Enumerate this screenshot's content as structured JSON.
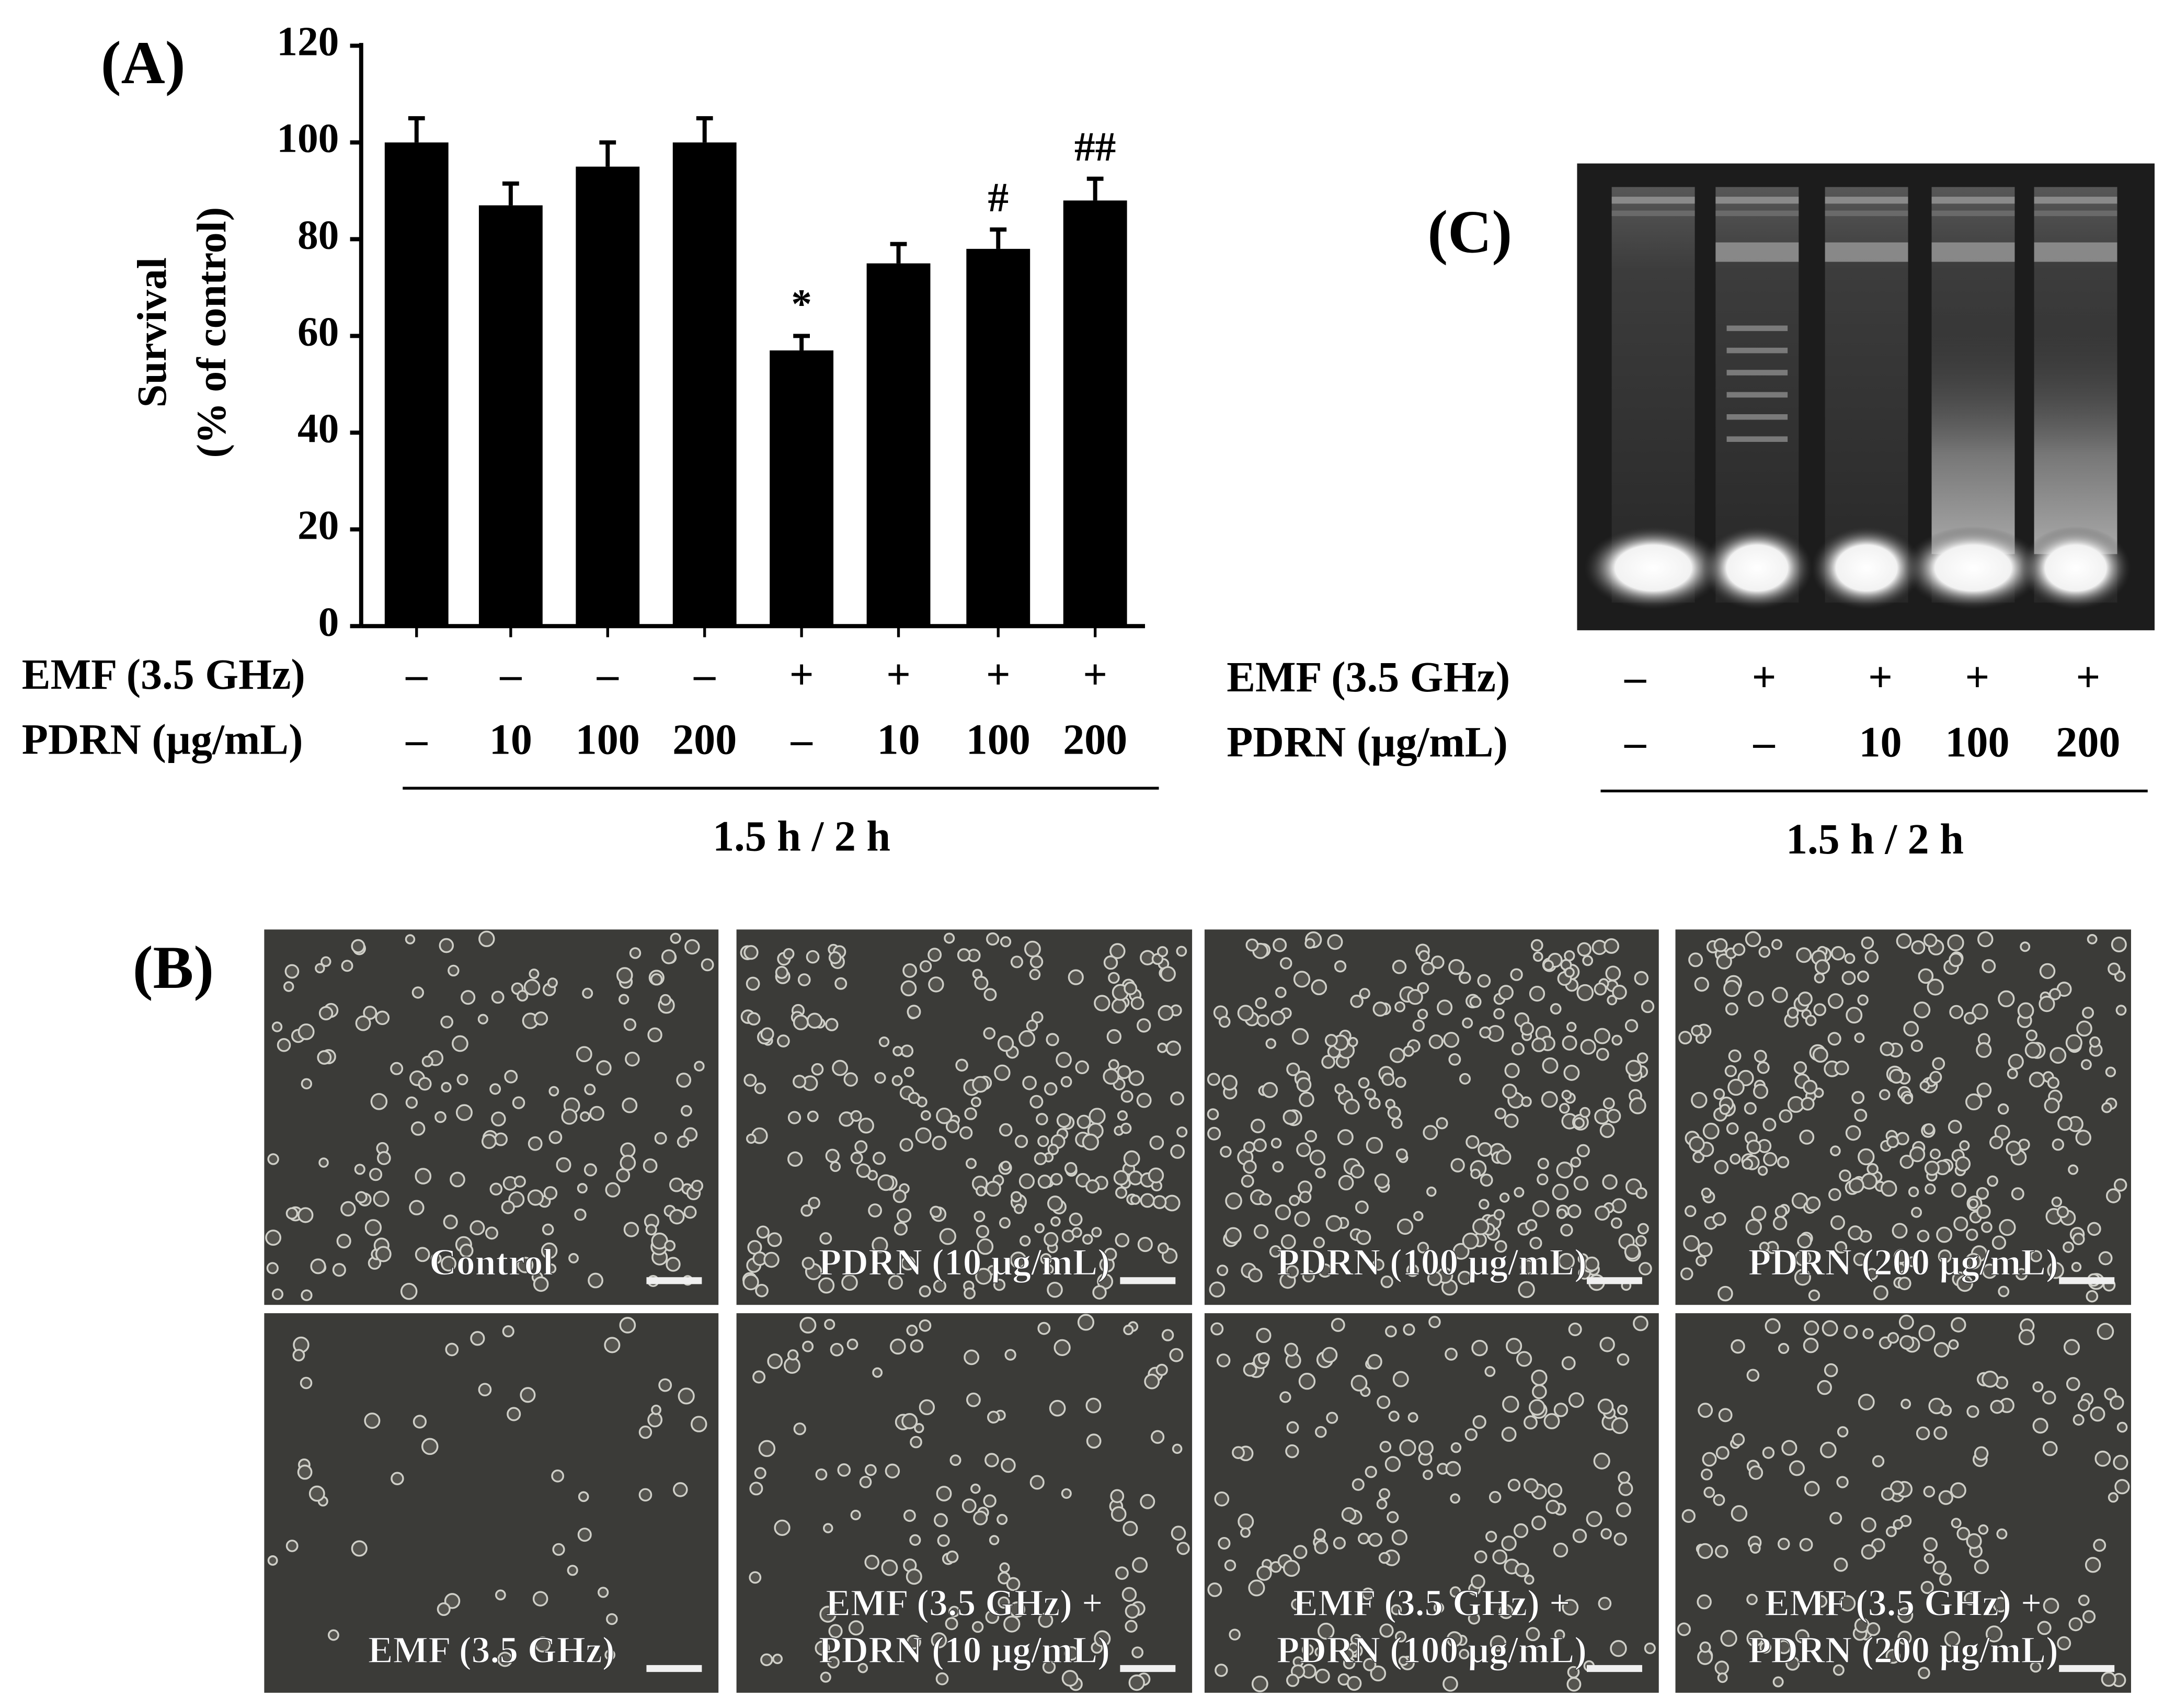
{
  "chart_data": {
    "type": "bar",
    "ylabel": [
      "Survival",
      "(% of control)"
    ],
    "values": [
      100,
      87,
      95,
      100,
      57,
      75,
      78,
      88
    ],
    "errors": [
      5,
      4.5,
      5,
      5,
      3,
      4,
      4,
      4.5
    ],
    "annotations": [
      null,
      null,
      null,
      null,
      "*",
      null,
      "#",
      "##"
    ],
    "color": "#000000",
    "ylim": [
      0,
      120
    ],
    "yticks": [
      0,
      20,
      40,
      60,
      80,
      100,
      120
    ]
  },
  "panel_labels": [
    "(A)",
    "(B)",
    "(C)"
  ],
  "panel_a_conditions": {
    "rows": [
      {
        "label": "EMF (3.5 GHz)",
        "values": [
          "–",
          "–",
          "–",
          "–",
          "+",
          "+",
          "+",
          "+"
        ]
      },
      {
        "label": "PDRN (µg/mL)",
        "values": [
          "–",
          "10",
          "100",
          "200",
          "–",
          "10",
          "100",
          "200"
        ]
      }
    ],
    "footer": "1.5 h / 2 h"
  },
  "panel_c_conditions": {
    "rows": [
      {
        "label": "EMF (3.5 GHz)",
        "values": [
          "–",
          "+",
          "+",
          "+",
          "+"
        ]
      },
      {
        "label": "PDRN (µg/mL)",
        "values": [
          "–",
          "–",
          "10",
          "100",
          "200"
        ]
      }
    ],
    "footer": "1.5 h / 2 h"
  },
  "micrographs": [
    [
      "Control"
    ],
    [
      "PDRN (10 µg/mL)"
    ],
    [
      "PDRN (100 µg/mL)"
    ],
    [
      "PDRN (200 µg/mL)"
    ],
    [
      "EMF (3.5 GHz)"
    ],
    [
      "EMF (3.5 GHz) +",
      "PDRN (10 µg/mL)"
    ],
    [
      "EMF (3.5 GHz) +",
      "PDRN (100 µg/mL)"
    ],
    [
      "EMF (3.5 GHz) +",
      "PDRN (200 µg/mL)"
    ]
  ]
}
